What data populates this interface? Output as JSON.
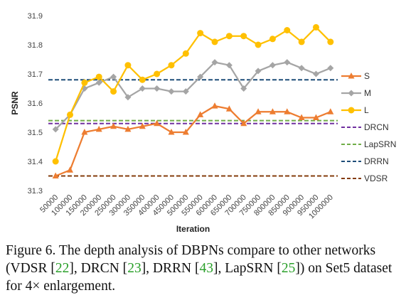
{
  "chart_data": {
    "type": "line",
    "xlabel": "Iteration",
    "ylabel": "PSNR",
    "ylim": [
      31.3,
      31.9
    ],
    "yticks": [
      "31.3",
      "31.4",
      "31.5",
      "31.6",
      "31.7",
      "31.8",
      "31.9"
    ],
    "categories": [
      "50000",
      "100000",
      "150000",
      "200000",
      "250000",
      "300000",
      "350000",
      "400000",
      "450000",
      "500000",
      "550000",
      "600000",
      "650000",
      "700000",
      "750000",
      "800000",
      "850000",
      "900000",
      "950000",
      "1000000"
    ],
    "grid": false,
    "legend_position": "right",
    "series": [
      {
        "name": "S",
        "color": "#ED7D31",
        "marker": "triangle",
        "values": [
          31.35,
          31.37,
          31.5,
          31.51,
          31.52,
          31.51,
          31.52,
          31.53,
          31.5,
          31.5,
          31.56,
          31.59,
          31.58,
          31.53,
          31.57,
          31.57,
          31.57,
          31.55,
          31.55,
          31.57
        ]
      },
      {
        "name": "M",
        "color": "#A5A5A5",
        "marker": "diamond",
        "values": [
          31.51,
          31.56,
          31.65,
          31.67,
          31.69,
          31.62,
          31.65,
          31.65,
          31.64,
          31.64,
          31.69,
          31.74,
          31.73,
          31.65,
          31.71,
          31.73,
          31.74,
          31.72,
          31.7,
          31.72
        ]
      },
      {
        "name": "L",
        "color": "#FFC000",
        "marker": "circle",
        "values": [
          31.4,
          31.56,
          31.67,
          31.69,
          31.64,
          31.73,
          31.68,
          31.7,
          31.73,
          31.77,
          31.84,
          31.81,
          31.83,
          31.83,
          31.8,
          31.82,
          31.85,
          31.81,
          31.86,
          31.81
        ]
      }
    ],
    "baselines": [
      {
        "name": "DRCN",
        "value": 31.53,
        "color": "#7030A0"
      },
      {
        "name": "LapSRN",
        "value": 31.54,
        "color": "#70AD47"
      },
      {
        "name": "DRRN",
        "value": 31.68,
        "color": "#1F4E79"
      },
      {
        "name": "VDSR",
        "value": 31.35,
        "color": "#843C0C"
      }
    ]
  },
  "caption": {
    "prefix": "Figure 6. The depth analysis of DBPNs compare to other networks (VDSR [",
    "ref_vdsr": "22",
    "sep1": "], DRCN [",
    "ref_drcn": "23",
    "sep2": "], DRRN [",
    "ref_drrn": "43",
    "sep3": "], LapSRN [",
    "ref_lapsrn": "25",
    "suffix": "]) on Set5 dataset for 4× enlargement."
  }
}
